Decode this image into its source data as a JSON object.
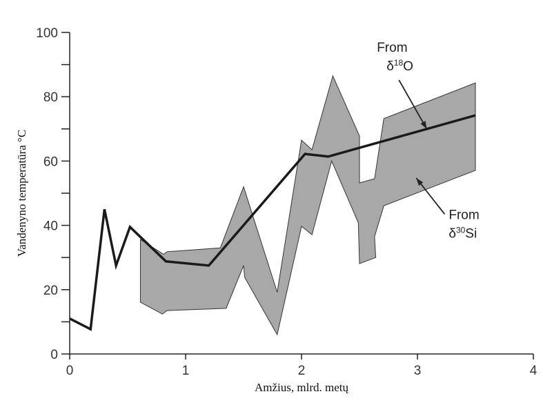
{
  "chart_data": {
    "type": "line",
    "title": "",
    "xlabel": "Amžius, mlrd. metų",
    "ylabel": "Vandenyno temperatūra °C",
    "xlim": [
      0,
      4
    ],
    "ylim": [
      0,
      100
    ],
    "xticks": [
      "0",
      "1",
      "2",
      "3",
      "4"
    ],
    "yticks": [
      "0",
      "20",
      "40",
      "60",
      "80",
      "100"
    ],
    "grid": false,
    "series": [
      {
        "name": "From δ18O",
        "kind": "line",
        "color": "#1a1a1a",
        "x": [
          0,
          0.18,
          0.3,
          0.4,
          0.52,
          0.83,
          1.2,
          2.03,
          2.23,
          3.5
        ],
        "y": [
          11,
          7.7,
          45,
          27.5,
          39.5,
          28.8,
          27.5,
          62.2,
          61.4,
          74.2
        ]
      },
      {
        "name": "From δ30Si",
        "kind": "band",
        "color": "#a8a8a8",
        "x": [
          0.61,
          0.81,
          0.84,
          1.3,
          1.5,
          1.79,
          2.0,
          2.09,
          2.27,
          2.5,
          2.5,
          2.63,
          2.71,
          3.5,
          3.5,
          2.71,
          2.63,
          2.64,
          2.5,
          2.49,
          2.26,
          2.09,
          2.0,
          1.79,
          1.51,
          1.5,
          1.35,
          0.84,
          0.8,
          0.61
        ],
        "y": [
          35.6,
          31,
          31.8,
          33,
          52,
          19.2,
          66.5,
          63.5,
          86.5,
          67.8,
          53.2,
          54.5,
          73.2,
          84.3,
          57.1,
          46.1,
          36.5,
          30,
          28.1,
          40.8,
          60,
          37.1,
          39.7,
          6,
          23.8,
          27.5,
          14.2,
          13.5,
          12.4,
          16.1
        ]
      }
    ],
    "annotations": [
      {
        "line1": "From",
        "symbol": "δ",
        "sup": "18",
        "element": "O",
        "x": 2.65,
        "y": 94,
        "arrow_to": [
          3.08,
          70
        ]
      },
      {
        "line1": "From",
        "symbol": "δ",
        "sup": "30",
        "element": "Si",
        "x": 3.27,
        "y": 42,
        "arrow_to": [
          2.99,
          54.7
        ]
      }
    ]
  }
}
